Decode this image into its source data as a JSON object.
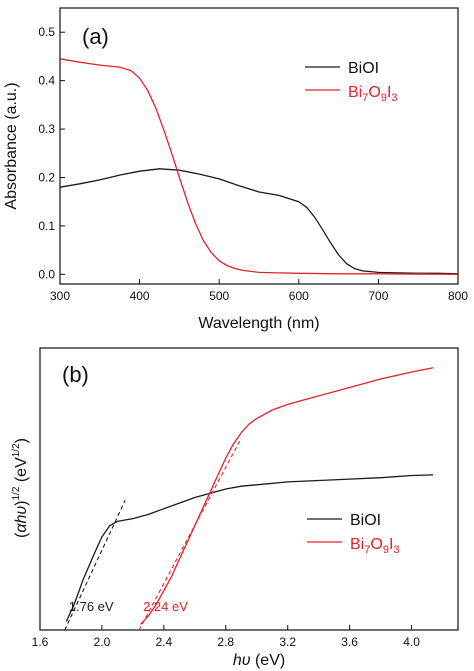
{
  "colors": {
    "biol": "#1a1a1a",
    "bi7o9i3": "#e8202a",
    "axis": "#111111"
  },
  "chart_data": [
    {
      "type": "line",
      "panel_label": "(a)",
      "xlabel": "Wavelength (nm)",
      "ylabel": "Absorbance (a.u.)",
      "xlim": [
        300,
        800
      ],
      "ylim": [
        -0.02,
        0.55
      ],
      "x_ticks": [
        "300",
        "400",
        "500",
        "600",
        "700",
        "800"
      ],
      "y_ticks": [
        "0.0",
        "0.1",
        "0.2",
        "0.3",
        "0.4",
        "0.5"
      ],
      "legend_position": "upper-right",
      "series": [
        {
          "name": "BiOI",
          "color": "#1a1a1a",
          "x": [
            300,
            325,
            350,
            375,
            400,
            425,
            450,
            475,
            500,
            525,
            550,
            575,
            600,
            610,
            620,
            630,
            640,
            650,
            660,
            670,
            680,
            700,
            725,
            750,
            775,
            800
          ],
          "y": [
            0.18,
            0.187,
            0.195,
            0.205,
            0.213,
            0.218,
            0.215,
            0.207,
            0.197,
            0.183,
            0.17,
            0.163,
            0.15,
            0.138,
            0.118,
            0.092,
            0.065,
            0.04,
            0.022,
            0.012,
            0.007,
            0.004,
            0.003,
            0.002,
            0.002,
            0.001
          ]
        },
        {
          "name": "Bi7O9I3",
          "color": "#e8202a",
          "x": [
            300,
            325,
            350,
            375,
            390,
            400,
            410,
            420,
            430,
            440,
            450,
            460,
            470,
            480,
            490,
            500,
            510,
            520,
            530,
            550,
            575,
            600,
            650,
            700,
            800
          ],
          "y": [
            0.445,
            0.438,
            0.432,
            0.428,
            0.42,
            0.405,
            0.38,
            0.345,
            0.3,
            0.252,
            0.2,
            0.15,
            0.106,
            0.07,
            0.045,
            0.028,
            0.018,
            0.012,
            0.008,
            0.004,
            0.003,
            0.002,
            0.001,
            0.001,
            0.0
          ]
        }
      ]
    },
    {
      "type": "line",
      "panel_label": "(b)",
      "xlabel": "hυ (eV)",
      "ylabel": "(αhυ)1/2 (eV1/2)",
      "xlim": [
        1.6,
        4.3
      ],
      "ylim": [
        0,
        1.0
      ],
      "x_ticks": [
        "1.6",
        "2.0",
        "2.4",
        "2.8",
        "3.2",
        "3.6",
        "4.0"
      ],
      "legend_position": "lower-right",
      "series": [
        {
          "name": "BiOI",
          "color": "#1a1a1a",
          "x": [
            1.77,
            1.82,
            1.88,
            1.95,
            2.0,
            2.05,
            2.1,
            2.15,
            2.2,
            2.3,
            2.4,
            2.5,
            2.6,
            2.7,
            2.8,
            2.9,
            3.0,
            3.2,
            3.4,
            3.6,
            3.8,
            4.0,
            4.14
          ],
          "y": [
            0.03,
            0.09,
            0.18,
            0.27,
            0.33,
            0.37,
            0.385,
            0.39,
            0.395,
            0.41,
            0.43,
            0.45,
            0.47,
            0.485,
            0.5,
            0.51,
            0.515,
            0.525,
            0.53,
            0.535,
            0.54,
            0.548,
            0.55
          ]
        },
        {
          "name": "Bi7O9I3",
          "color": "#e8202a",
          "x": [
            2.25,
            2.3,
            2.35,
            2.4,
            2.45,
            2.5,
            2.55,
            2.6,
            2.65,
            2.7,
            2.75,
            2.8,
            2.85,
            2.9,
            2.95,
            3.0,
            3.1,
            3.2,
            3.4,
            3.6,
            3.8,
            4.0,
            4.14
          ],
          "y": [
            0.02,
            0.05,
            0.09,
            0.14,
            0.19,
            0.25,
            0.31,
            0.37,
            0.43,
            0.49,
            0.55,
            0.61,
            0.66,
            0.7,
            0.73,
            0.75,
            0.78,
            0.8,
            0.83,
            0.86,
            0.89,
            0.915,
            0.93
          ]
        }
      ],
      "tangent_lines": [
        {
          "color": "#1a1a1a",
          "x": [
            1.76,
            2.15
          ],
          "y": [
            0.0,
            0.46
          ]
        },
        {
          "color": "#e8202a",
          "x": [
            2.24,
            2.9
          ],
          "y": [
            0.0,
            0.68
          ]
        }
      ],
      "annotations": [
        {
          "text": "1.76 eV",
          "x": 1.76,
          "color": "#1a1a1a"
        },
        {
          "text": "2.24 eV",
          "x": 2.24,
          "color": "#e8202a"
        }
      ]
    }
  ]
}
